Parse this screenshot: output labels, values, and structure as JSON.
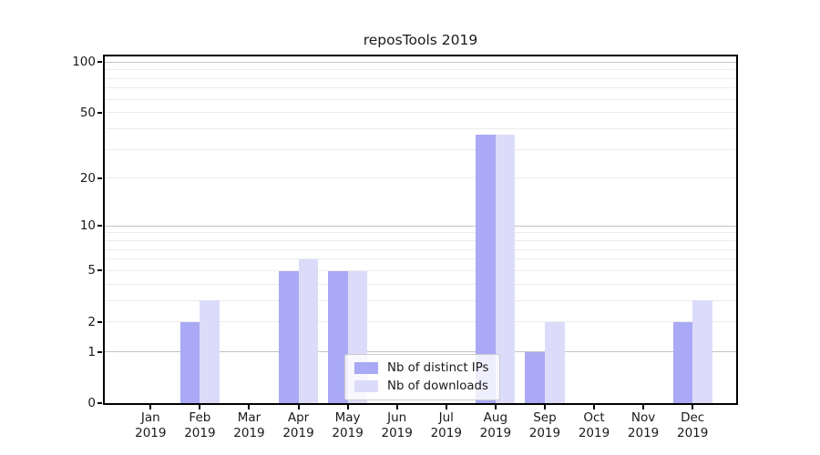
{
  "title": "reposTools 2019",
  "chart_data": {
    "type": "bar",
    "title": "reposTools 2019",
    "x_categories": [
      "Jan",
      "Feb",
      "Mar",
      "Apr",
      "May",
      "Jun",
      "Jul",
      "Aug",
      "Sep",
      "Oct",
      "Nov",
      "Dec"
    ],
    "x_year": "2019",
    "series": [
      {
        "name": "Nb of distinct IPs",
        "key": "distinct-ips",
        "color": "#a9a9f5",
        "values": [
          0,
          2,
          0,
          5,
          5,
          0,
          0,
          37,
          1,
          0,
          0,
          2
        ]
      },
      {
        "name": "Nb of downloads",
        "key": "downloads",
        "color": "#dcdcfa",
        "values": [
          0,
          3,
          0,
          6,
          5,
          0,
          0,
          37,
          2,
          0,
          0,
          3
        ]
      }
    ],
    "y_scale": "log1p",
    "ylim": [
      0,
      108
    ],
    "y_ticks": [
      0,
      1,
      2,
      5,
      10,
      20,
      50,
      100
    ],
    "y_major_gridlines": [
      1,
      10,
      100
    ],
    "y_minor_gridlines": [
      2,
      3,
      4,
      5,
      6,
      7,
      8,
      9,
      20,
      30,
      40,
      50,
      60,
      70,
      80,
      90
    ],
    "grid": "on",
    "legend_position": "lower-center",
    "colors": {
      "major_grid": "#c3c3c3",
      "minor_grid": "#ececec",
      "axis": "#000000",
      "text": "#1a1a1a"
    }
  }
}
